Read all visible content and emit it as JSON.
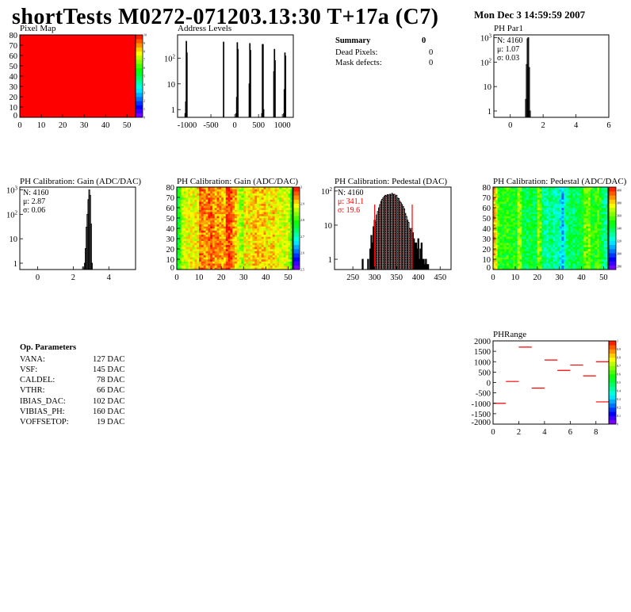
{
  "header": {
    "title": "shortTests M0272-071203.13:30 T+17a (C7)",
    "date": "Mon Dec  3 14:59:59 2007"
  },
  "summary": {
    "title": "Summary",
    "total": "0",
    "rows": [
      {
        "label": "Dead Pixels:",
        "value": "0"
      },
      {
        "label": "Mask defects:",
        "value": "0"
      }
    ]
  },
  "op_parameters": {
    "title": "Op. Parameters",
    "rows": [
      {
        "label": "VANA:",
        "value": "127 DAC"
      },
      {
        "label": "VSF:",
        "value": "145 DAC"
      },
      {
        "label": "CALDEL:",
        "value": "78 DAC"
      },
      {
        "label": "VTHR:",
        "value": "66 DAC"
      },
      {
        "label": "IBIAS_DAC:",
        "value": "102 DAC"
      },
      {
        "label": "VIBIAS_PH:",
        "value": "160 DAC"
      },
      {
        "label": "VOFFSETOP:",
        "value": "19 DAC"
      }
    ]
  },
  "colors": {
    "hist_line": "#000000",
    "fit_marker": "#ff0000",
    "pixel_map_fill": "#ff0000"
  },
  "chart_data": [
    {
      "id": "pixel-map",
      "type": "heatmap",
      "title": "Pixel Map",
      "xlim": [
        0,
        54
      ],
      "ylim": [
        0,
        80
      ],
      "zlim": [
        0,
        10
      ],
      "xticks": [
        0,
        10,
        20,
        30,
        40,
        50
      ],
      "yticks": [
        0,
        10,
        20,
        30,
        40,
        50,
        60,
        70,
        80
      ],
      "zticks": [
        0,
        1,
        2,
        3,
        4,
        5,
        6,
        7,
        8,
        9,
        10
      ],
      "uniform_value": 10
    },
    {
      "id": "address-levels",
      "type": "bar",
      "title": "Address Levels",
      "xlim": [
        -1200,
        1230
      ],
      "ylim": [
        0.5,
        800
      ],
      "ylog": true,
      "xticks": [
        -1000,
        -500,
        0,
        500,
        1000
      ],
      "yticks": [
        1,
        10,
        100
      ],
      "bin_width": 12,
      "x": [
        -1040,
        -1028,
        -1016,
        -1004,
        -246,
        -234,
        30,
        42,
        54,
        66,
        306,
        318,
        330,
        570,
        582,
        594,
        606,
        822,
        834,
        846,
        1030,
        1042,
        1054,
        1066
      ],
      "values": [
        0.7,
        2,
        450,
        160,
        0,
        420,
        0.7,
        3,
        400,
        220,
        10,
        370,
        200,
        0.7,
        340,
        340,
        1,
        30,
        220,
        80,
        0.7,
        6,
        160,
        120
      ]
    },
    {
      "id": "ph-par1",
      "type": "bar",
      "title": "PH Par1",
      "xlim": [
        -1,
        6
      ],
      "ylim": [
        0.55,
        1300
      ],
      "ylog": true,
      "xticks": [
        0,
        2,
        4,
        6
      ],
      "yticks": [
        1,
        10,
        100,
        1000
      ],
      "bin_width": 0.05,
      "x": [
        0.95,
        1.0,
        1.05,
        1.1,
        1.15,
        1.2
      ],
      "values": [
        3,
        80,
        900,
        1000,
        60,
        1
      ],
      "stats": {
        "entries": "N: 4160",
        "mean": "μ: 1.07",
        "sigma": "σ: 0.03"
      }
    },
    {
      "id": "ph-gain-hist",
      "type": "bar",
      "title": "PH Calibration: Gain (ADC/DAC)",
      "xlim": [
        -1,
        5.5
      ],
      "ylim": [
        0.55,
        1300
      ],
      "ylog": true,
      "xticks": [
        0,
        2,
        4
      ],
      "yticks": [
        1,
        10,
        100,
        1000
      ],
      "bin_width": 0.05,
      "x": [
        2.55,
        2.6,
        2.65,
        2.7,
        2.75,
        2.8,
        2.85,
        2.9,
        2.95,
        3.0,
        3.05
      ],
      "values": [
        0.7,
        0,
        1,
        4,
        30,
        100,
        400,
        1000,
        600,
        40,
        1
      ],
      "stats": {
        "entries": "N: 4160",
        "mean": "μ: 2.87",
        "sigma": "σ: 0.06"
      }
    },
    {
      "id": "ph-gain-map",
      "type": "heatmap",
      "title": "PH Calibration: Gain (ADC/DAC)",
      "xlim": [
        0,
        52
      ],
      "ylim": [
        0,
        80
      ],
      "zlim": [
        2.5,
        3.0
      ],
      "xticks": [
        0,
        10,
        20,
        30,
        40,
        50
      ],
      "yticks": [
        0,
        10,
        20,
        30,
        40,
        50,
        60,
        70,
        80
      ],
      "zticks": [
        2.5,
        2.6,
        2.7,
        2.8,
        2.9,
        3.0
      ],
      "column_means": [
        2.76,
        2.8,
        2.86,
        2.87,
        2.88,
        2.88,
        2.89,
        2.88,
        2.89,
        2.9,
        2.95,
        2.95,
        2.94,
        2.93,
        2.95,
        2.96,
        2.94,
        2.93,
        2.95,
        2.94,
        2.93,
        2.92,
        2.97,
        2.98,
        2.96,
        2.93,
        2.92,
        2.88,
        2.86,
        2.84,
        2.9,
        2.9,
        2.89,
        2.9,
        2.91,
        2.92,
        2.91,
        2.9,
        2.92,
        2.91,
        2.89,
        2.9,
        2.9,
        2.91,
        2.89,
        2.88,
        2.87,
        2.88,
        2.87,
        2.88,
        2.86,
        2.8
      ]
    },
    {
      "id": "ph-pedestal-hist",
      "type": "bar",
      "title": "PH Calibration: Pedestal (DAC)",
      "xlim": [
        208,
        475
      ],
      "ylim": [
        0.5,
        130
      ],
      "ylog": true,
      "xticks": [
        250,
        300,
        350,
        400,
        450
      ],
      "yticks": [
        1,
        10,
        100
      ],
      "bin_width": 2.5,
      "x": [
        272.5,
        285,
        290,
        292.5,
        295,
        297.5,
        300,
        302.5,
        305,
        307.5,
        310,
        312.5,
        315,
        317.5,
        320,
        322.5,
        325,
        327.5,
        330,
        332.5,
        335,
        337.5,
        340,
        342.5,
        345,
        347.5,
        350,
        352.5,
        355,
        357.5,
        360,
        362.5,
        365,
        367.5,
        370,
        372.5,
        375,
        377.5,
        380,
        382.5,
        385,
        387.5,
        390,
        392.5,
        395,
        397.5,
        400,
        402.5,
        405,
        407.5,
        410,
        412.5,
        415,
        417.5,
        420,
        422.5
      ],
      "values": [
        1,
        1,
        2,
        5,
        3,
        9,
        14,
        12,
        20,
        25,
        32,
        40,
        50,
        57,
        63,
        70,
        75,
        70,
        78,
        72,
        80,
        76,
        85,
        78,
        80,
        70,
        75,
        62,
        60,
        50,
        45,
        40,
        35,
        30,
        22,
        18,
        14,
        12,
        8,
        7,
        8,
        6,
        4,
        3,
        3,
        2,
        4,
        1,
        2,
        3,
        1,
        1,
        0.7,
        1,
        0.7,
        0.7
      ],
      "fit_range": [
        300,
        386
      ],
      "stats": {
        "entries": "N: 4160",
        "mean": "μ: 341.1",
        "sigma": "σ: 19.6"
      }
    },
    {
      "id": "ph-pedestal-map",
      "type": "heatmap",
      "title": "PH Calibration: Pedestal (ADC/DAC)",
      "xlim": [
        0,
        52
      ],
      "ylim": [
        0,
        80
      ],
      "zlim": [
        275,
        405
      ],
      "xticks": [
        0,
        10,
        20,
        30,
        40,
        50
      ],
      "yticks": [
        0,
        10,
        20,
        30,
        40,
        50,
        60,
        70,
        80
      ],
      "zticks": [
        280,
        300,
        320,
        340,
        360,
        380,
        400
      ],
      "column_means": [
        385,
        372,
        352,
        350,
        348,
        350,
        352,
        349,
        347,
        350,
        345,
        366,
        360,
        342,
        340,
        338,
        341,
        344,
        340,
        342,
        362,
        358,
        334,
        332,
        330,
        334,
        336,
        331,
        329,
        332,
        322,
        312,
        326,
        334,
        338,
        340,
        336,
        342,
        338,
        344,
        345,
        360,
        358,
        364,
        350,
        348,
        352,
        356,
        350,
        336,
        334,
        332
      ]
    },
    {
      "id": "ph-range",
      "type": "heatmap",
      "title": "PHRange",
      "xlim": [
        0,
        9
      ],
      "ylim": [
        -2000,
        2000
      ],
      "zlim": [
        0,
        1
      ],
      "xticks": [
        0,
        2,
        4,
        6,
        8
      ],
      "yticks": [
        -2000,
        -1500,
        -1000,
        -500,
        0,
        500,
        1000,
        1500,
        2000
      ],
      "zticks": [
        0,
        0.1,
        0.2,
        0.3,
        0.4,
        0.5,
        0.6,
        0.7,
        0.8,
        0.9,
        1
      ],
      "segments": [
        {
          "bin": 0,
          "value": -1000
        },
        {
          "bin": 1,
          "value": 50
        },
        {
          "bin": 2,
          "value": 1700
        },
        {
          "bin": 3,
          "value": -270
        },
        {
          "bin": 4,
          "value": 1080
        },
        {
          "bin": 5,
          "value": 580
        },
        {
          "bin": 6,
          "value": 840
        },
        {
          "bin": 7,
          "value": 320
        },
        {
          "bin": 8,
          "value": 1000
        },
        {
          "bin": 8,
          "value": -930
        }
      ]
    }
  ]
}
